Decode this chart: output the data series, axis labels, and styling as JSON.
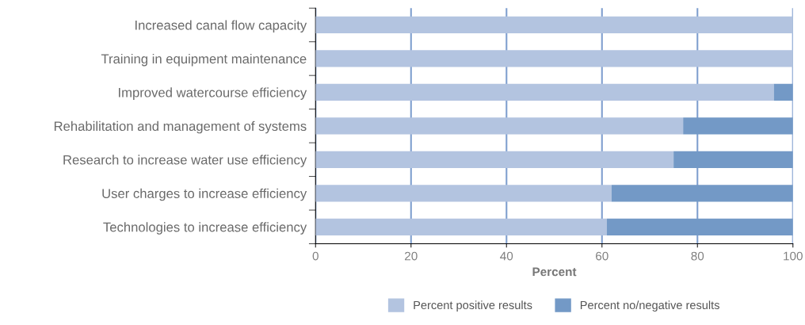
{
  "chart_data": {
    "type": "bar",
    "orientation": "horizontal",
    "stacked": true,
    "xlabel": "Percent",
    "categories": [
      "Increased canal flow capacity",
      "Training in equipment maintenance",
      "Improved watercourse efficiency",
      "Rehabilitation and management of systems",
      "Research to increase water use efficiency",
      "User charges to increase efficiency",
      "Technologies to increase efficiency"
    ],
    "series": [
      {
        "name": "Percent positive results",
        "color": "#b3c4e0",
        "values": [
          100,
          100,
          96,
          77,
          75,
          62,
          61
        ]
      },
      {
        "name": "Percent no/negative results",
        "color": "#7399c6",
        "values": [
          0,
          0,
          4,
          23,
          25,
          38,
          39
        ]
      }
    ],
    "xlim": [
      0,
      100
    ],
    "xticks": [
      0,
      20,
      40,
      60,
      80,
      100
    ],
    "grid": "x",
    "legend": "bottom"
  }
}
